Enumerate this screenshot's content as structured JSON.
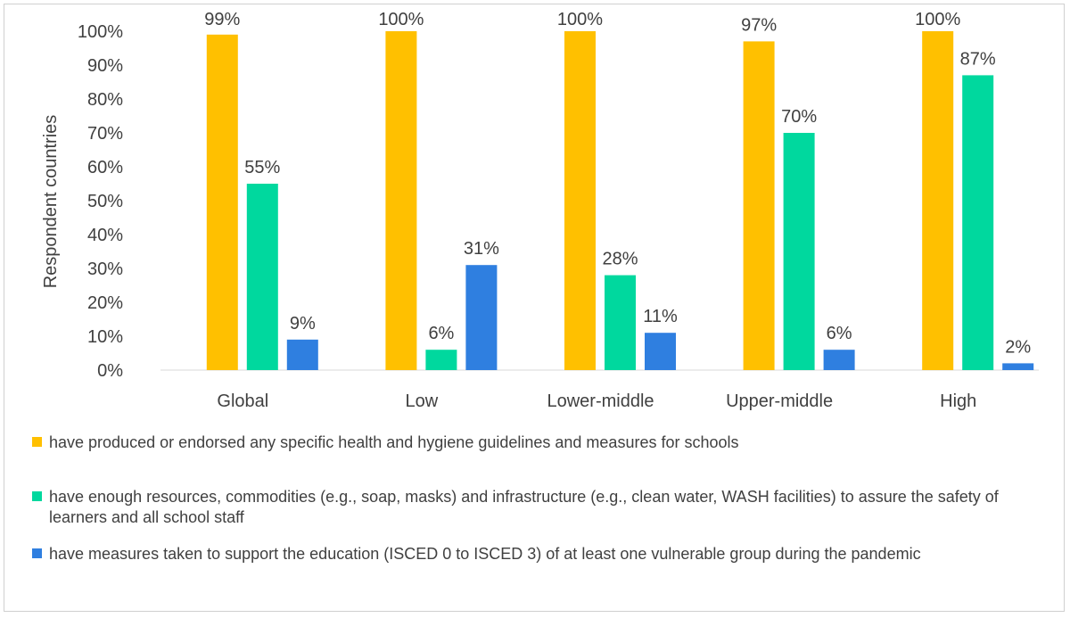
{
  "chart_data": {
    "type": "bar",
    "ylabel": "Respondent countries",
    "ylim": [
      0,
      100
    ],
    "yticks": [
      "0%",
      "10%",
      "20%",
      "30%",
      "40%",
      "50%",
      "60%",
      "70%",
      "80%",
      "90%",
      "100%"
    ],
    "grid": false,
    "legend_position": "bottom",
    "categories": [
      "Global",
      "Low",
      "Lower-middle",
      "Upper-middle",
      "High"
    ],
    "series": [
      {
        "name": "have produced or endorsed any specific health and hygiene guidelines and measures for schools",
        "color": "#FFC000",
        "values": [
          99,
          100,
          100,
          97,
          100
        ],
        "labels": [
          "99%",
          "100%",
          "100%",
          "97%",
          "100%"
        ]
      },
      {
        "name": "have enough resources, commodities (e.g., soap, masks) and infrastructure (e.g., clean water, WASH facilities) to assure the safety of learners and all school staff",
        "color": "#00D89E",
        "values": [
          55,
          6,
          28,
          70,
          87
        ],
        "labels": [
          "55%",
          "6%",
          "28%",
          "70%",
          "87%"
        ]
      },
      {
        "name": "have measures taken to support the education (ISCED 0 to ISCED 3) of at least one vulnerable group during the pandemic",
        "color": "#2F7FE0",
        "values": [
          9,
          31,
          11,
          6,
          2
        ],
        "labels": [
          "9%",
          "31%",
          "11%",
          "6%",
          "2%"
        ]
      }
    ]
  }
}
